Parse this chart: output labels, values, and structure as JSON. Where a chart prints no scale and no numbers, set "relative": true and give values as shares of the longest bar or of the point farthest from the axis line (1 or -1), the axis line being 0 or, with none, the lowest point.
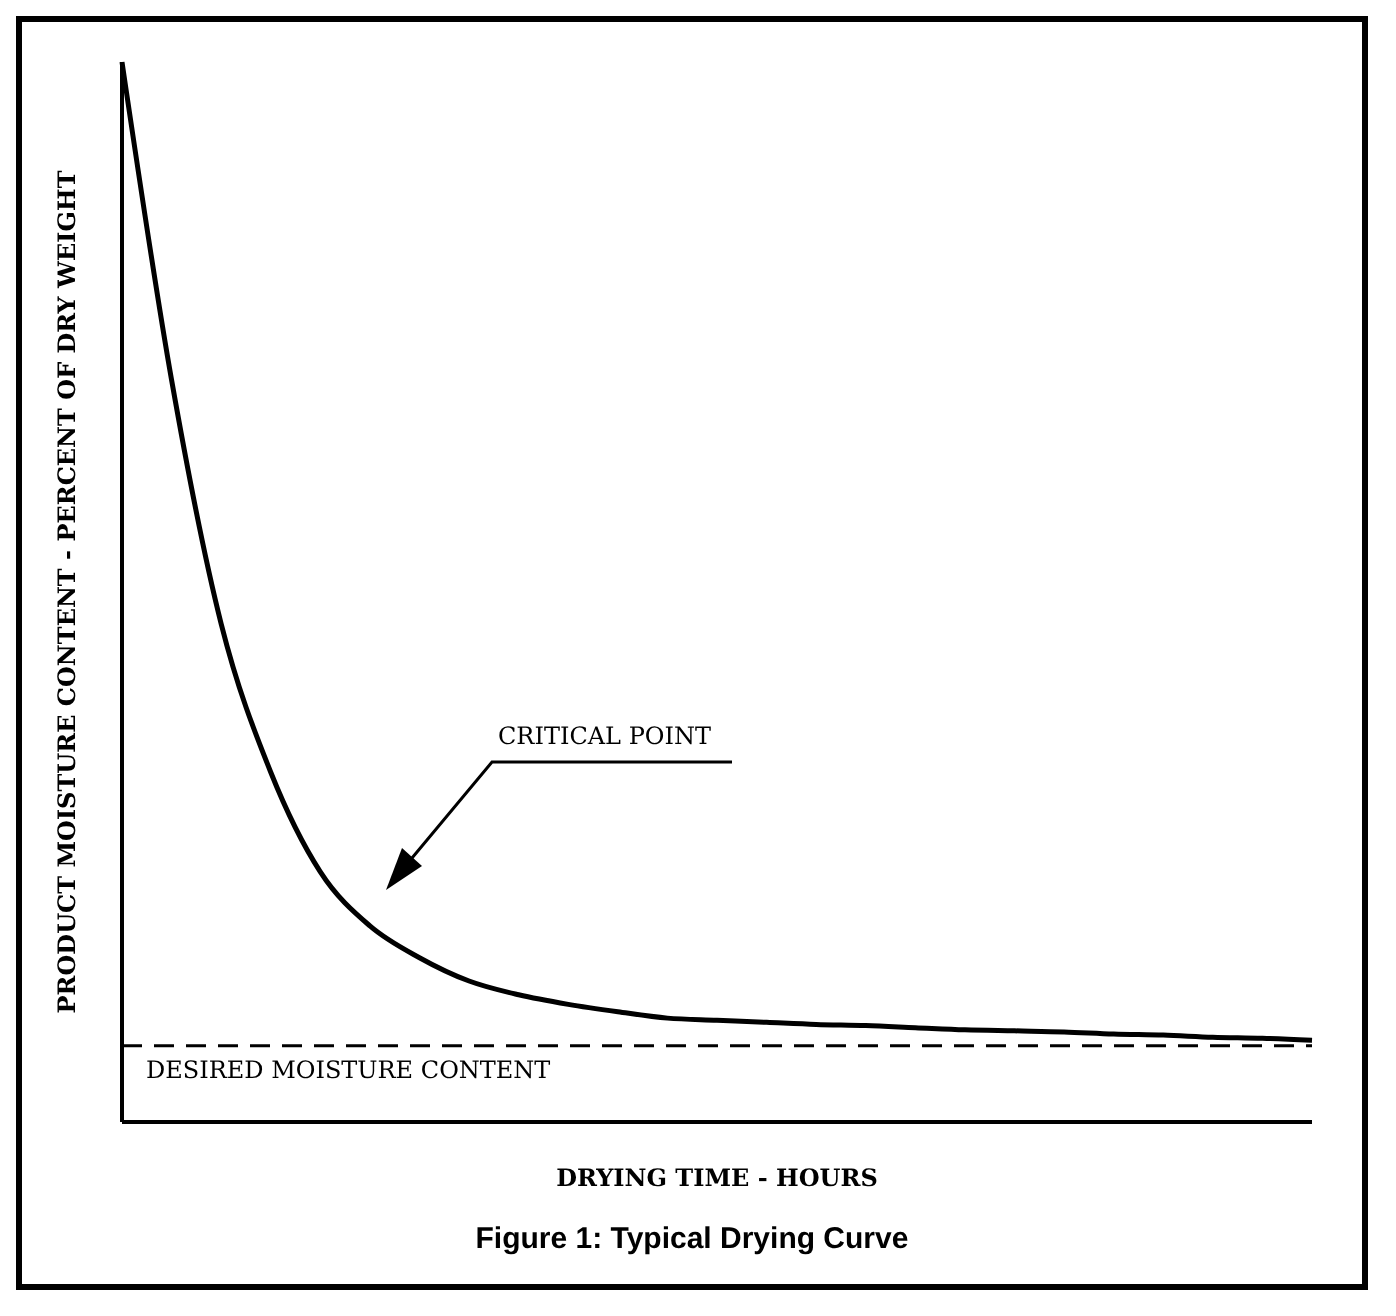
{
  "chart_data": {
    "type": "line",
    "relative": true,
    "title": "Figure 1: Typical Drying Curve",
    "xlabel": "DRYING TIME - HOURS",
    "ylabel": "PRODUCT MOISTURE CONTENT - PERCENT OF DRY WEIGHT",
    "categories": [
      null,
      null,
      null,
      null,
      null,
      null,
      null,
      null,
      null,
      null,
      null,
      null,
      null,
      null,
      null,
      null,
      null,
      null,
      null,
      null,
      null,
      null,
      null,
      null,
      null
    ],
    "series": [
      {
        "color": "#000000",
        "values": [
          1.0,
          0.7,
          0.47,
          0.33,
          0.236,
          0.185,
          0.155,
          0.133,
          0.12,
          0.111,
          0.104,
          0.098,
          0.096,
          0.094,
          0.092,
          0.091,
          0.089,
          0.087,
          0.086,
          0.085,
          0.083,
          0.082,
          0.08,
          0.079,
          0.077
        ]
      }
    ],
    "ref_lines": [
      {
        "axis": "y",
        "value": 0.072,
        "label": "DESIRED MOISTURE CONTENT",
        "color": "#000000",
        "line_style": "dashed"
      }
    ],
    "annotations": [
      "CRITICAL POINT"
    ],
    "grid": false,
    "marker": "none",
    "line_style": "solid"
  }
}
